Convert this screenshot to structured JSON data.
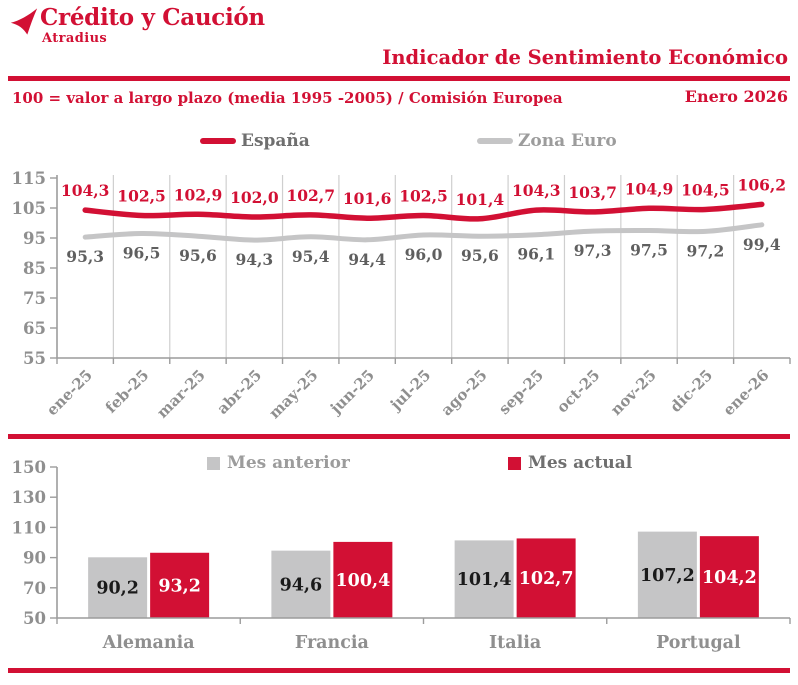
{
  "brand": {
    "logo_text": "Crédito y Caución",
    "logo_subtext": "Atradius"
  },
  "header": {
    "title": "Indicador de Sentimiento Económico",
    "subtitle": "100 = valor a largo plazo (media 1995 -2005) / Comisión Europea",
    "date": "Enero 2026"
  },
  "colors": {
    "brand_red": "#d21034",
    "series_gray": "#c5c5c6",
    "grid": "#cfcfcf",
    "axis": "#9c9c9c",
    "axis_label": "#8f8f8f",
    "gray_series_label": "#5f5f5f",
    "bar_label_on_gray": "#1a1a1a",
    "bar_label_on_red": "#ffffff"
  },
  "chart_data": [
    {
      "type": "line",
      "categories": [
        "ene-25",
        "feb-25",
        "mar-25",
        "abr-25",
        "may-25",
        "jun-25",
        "jul-25",
        "ago-25",
        "sep-25",
        "oct-25",
        "nov-25",
        "dic-25",
        "ene-26"
      ],
      "series": [
        {
          "name": "España",
          "color": "#d21034",
          "values": [
            104.3,
            102.5,
            102.9,
            102.0,
            102.7,
            101.6,
            102.5,
            101.4,
            104.3,
            103.7,
            104.9,
            104.5,
            106.2
          ]
        },
        {
          "name": "Zona Euro",
          "color": "#c5c5c6",
          "values": [
            95.3,
            96.5,
            95.6,
            94.3,
            95.4,
            94.4,
            96.0,
            95.6,
            96.1,
            97.3,
            97.5,
            97.2,
            99.4
          ]
        }
      ],
      "ylim": [
        55,
        115
      ],
      "ytick_step": 10,
      "grid": "vertical",
      "legend_position": "top",
      "decimal_separator": ","
    },
    {
      "type": "bar",
      "categories": [
        "Alemania",
        "Francia",
        "Italia",
        "Portugal"
      ],
      "series": [
        {
          "name": "Mes anterior",
          "color": "#c5c5c6",
          "label_color": "#1a1a1a",
          "values": [
            90.2,
            94.6,
            101.4,
            107.2
          ]
        },
        {
          "name": "Mes actual",
          "color": "#d21034",
          "label_color": "#ffffff",
          "values": [
            93.2,
            100.4,
            102.7,
            104.2
          ]
        }
      ],
      "ylim": [
        50,
        150
      ],
      "ytick_step": 20,
      "grid": "off",
      "legend_position": "top",
      "decimal_separator": ","
    }
  ]
}
